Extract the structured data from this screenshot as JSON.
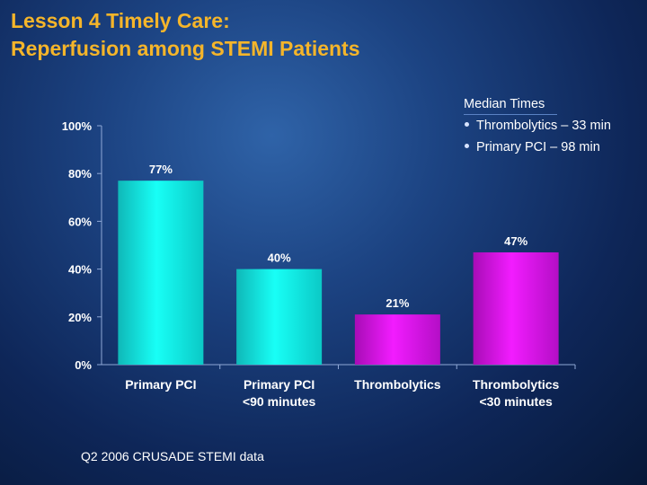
{
  "slide": {
    "title_line1": "Lesson 4 Timely Care:",
    "title_line2": "Reperfusion among STEMI Patients",
    "source": "Q2 2006 CRUSADE STEMI data"
  },
  "legend": {
    "heading": "Median Times",
    "items": [
      "Thrombolytics – 33 min",
      "Primary PCI – 98 min"
    ]
  },
  "colors": {
    "cyan": "#12f0ea",
    "magenta": "#e014ee",
    "title": "#f5b52a"
  },
  "chart_data": {
    "type": "bar",
    "title": "",
    "xlabel": "",
    "ylabel": "",
    "ylim": [
      0,
      100
    ],
    "yticks": [
      0,
      20,
      40,
      60,
      80,
      100
    ],
    "ytick_labels": [
      "0%",
      "20%",
      "40%",
      "60%",
      "80%",
      "100%"
    ],
    "categories": [
      [
        "Primary PCI"
      ],
      [
        "Primary PCI",
        "<90 minutes"
      ],
      [
        "Thrombolytics"
      ],
      [
        "Thrombolytics",
        "<30 minutes"
      ]
    ],
    "values": [
      77,
      40,
      21,
      47
    ],
    "data_labels": [
      "77%",
      "40%",
      "21%",
      "47%"
    ],
    "bar_colors": [
      "cyan",
      "cyan",
      "magenta",
      "magenta"
    ]
  }
}
